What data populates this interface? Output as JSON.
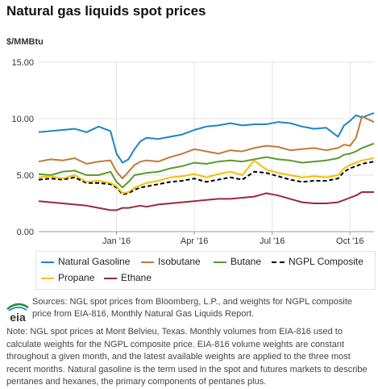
{
  "title": "Natural gas liquids spot prices",
  "unit_label": "$/MMBtu",
  "sources": "Sources: NGL spot prices from Bloomberg, L.P., and weights for NGPL composite price from EIA-816, Monthly Natural Gas Liquids Report.",
  "note": "Note: NGL spot prices at Mont Belvieu, Texas. Monthly volumes from EIA-816 used to calculate weights for the NGPL composite price. EIA-816 volume weights are constant throughout a given month, and the latest available weights are applied to the three most recent months. Natural gasoline is the term used in the spot and futures markets to describe pentanes and hexanes, the primary components of pentanes plus.",
  "logo_text": "eia",
  "chart_data": {
    "type": "line",
    "title": "Natural gas liquids spot prices",
    "ylabel": "$/MMBtu",
    "xlabel": "",
    "ylim": [
      0,
      15
    ],
    "y_ticks": [
      "0.00",
      "5.00",
      "10.00",
      "15.00"
    ],
    "x_ticks": [
      "Jan '16",
      "Apr '16",
      "Jul '16",
      "Oct '16"
    ],
    "x_range": [
      "Oct '15",
      "Oct '16"
    ],
    "grid": true,
    "legend_placement": "bottom",
    "x": [
      0,
      2,
      4,
      6,
      8,
      10,
      12,
      13,
      14,
      15,
      16,
      17,
      18,
      20,
      22,
      24,
      26,
      28,
      30,
      32,
      34,
      36,
      38,
      40,
      42,
      44,
      46,
      48,
      50,
      51,
      52,
      53,
      54,
      56
    ],
    "series": [
      {
        "name": "Natural Gasoline",
        "color": "#1a86c8",
        "dashed": false,
        "values": [
          8.8,
          8.9,
          9.0,
          9.1,
          8.8,
          9.3,
          8.9,
          6.9,
          6.1,
          6.4,
          7.3,
          8.0,
          8.3,
          8.2,
          8.4,
          8.6,
          9.0,
          9.3,
          9.4,
          9.6,
          9.4,
          9.5,
          9.5,
          9.7,
          9.6,
          9.3,
          9.1,
          9.2,
          8.4,
          9.4,
          9.8,
          10.3,
          10.1,
          10.5
        ]
      },
      {
        "name": "Isobutane",
        "color": "#c07a3a",
        "dashed": false,
        "values": [
          6.2,
          6.4,
          6.3,
          6.5,
          6.0,
          6.2,
          6.3,
          5.3,
          4.7,
          5.3,
          5.9,
          6.2,
          6.3,
          6.2,
          6.6,
          6.9,
          7.3,
          7.1,
          6.9,
          7.2,
          7.1,
          7.4,
          7.6,
          7.5,
          7.2,
          7.3,
          7.4,
          7.2,
          7.4,
          7.7,
          7.6,
          8.3,
          10.2,
          9.7
        ]
      },
      {
        "name": "Butane",
        "color": "#5a9a2a",
        "dashed": false,
        "values": [
          5.1,
          5.0,
          5.3,
          5.4,
          5.0,
          5.0,
          5.3,
          4.4,
          3.9,
          4.4,
          5.0,
          5.1,
          5.2,
          5.3,
          5.6,
          5.8,
          6.1,
          6.0,
          6.2,
          6.3,
          6.2,
          6.4,
          6.6,
          6.4,
          6.3,
          6.1,
          6.2,
          6.3,
          6.5,
          6.8,
          6.9,
          7.1,
          7.4,
          7.8
        ]
      },
      {
        "name": "NGPL Composite",
        "color": "#000000",
        "dashed": true,
        "values": [
          4.6,
          4.7,
          4.6,
          4.8,
          4.3,
          4.3,
          4.2,
          3.9,
          3.3,
          3.4,
          3.7,
          3.9,
          4.0,
          4.2,
          4.4,
          4.5,
          4.7,
          4.4,
          4.6,
          4.8,
          4.6,
          5.3,
          5.2,
          4.9,
          4.6,
          4.4,
          4.5,
          4.5,
          4.7,
          5.3,
          5.6,
          5.8,
          6.0,
          6.2
        ]
      },
      {
        "name": "Propane",
        "color": "#f2c100",
        "dashed": false,
        "values": [
          4.8,
          4.9,
          4.7,
          5.0,
          4.4,
          4.5,
          4.3,
          4.0,
          3.4,
          3.5,
          3.9,
          4.1,
          4.3,
          4.5,
          4.8,
          4.9,
          5.1,
          4.8,
          5.1,
          5.3,
          5.0,
          6.3,
          5.5,
          5.2,
          5.0,
          4.8,
          4.9,
          4.8,
          5.0,
          5.6,
          5.9,
          6.1,
          6.3,
          6.5
        ]
      },
      {
        "name": "Ethane",
        "color": "#9b2a3a",
        "dashed": false,
        "values": [
          2.7,
          2.6,
          2.5,
          2.4,
          2.3,
          2.1,
          1.9,
          1.9,
          2.1,
          2.1,
          2.2,
          2.3,
          2.2,
          2.4,
          2.5,
          2.6,
          2.7,
          2.8,
          2.9,
          2.9,
          3.0,
          3.1,
          3.4,
          3.2,
          2.9,
          2.6,
          2.5,
          2.5,
          2.6,
          2.8,
          3.0,
          3.2,
          3.5,
          3.5
        ]
      }
    ]
  }
}
